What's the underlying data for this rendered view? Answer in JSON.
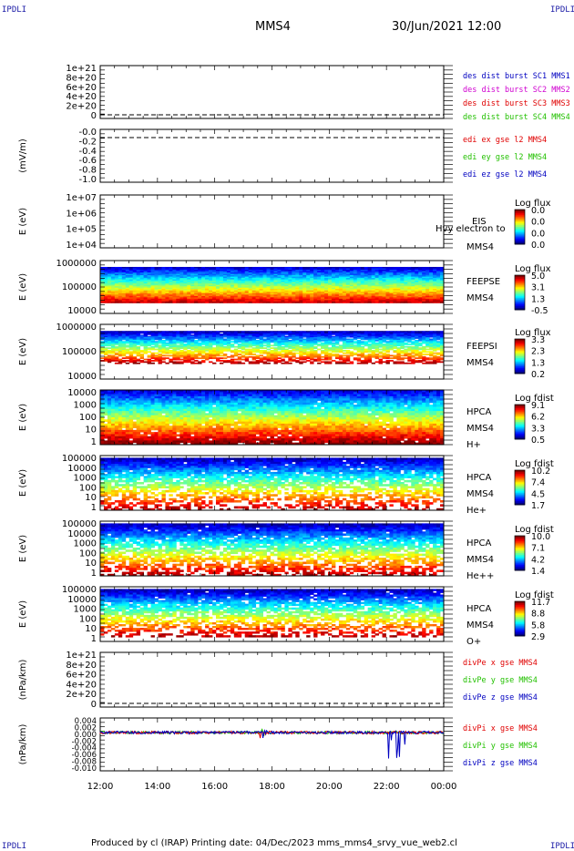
{
  "corner_tag": "IPDLI",
  "spacecraft_title": "MMS4",
  "date_title": "30/Jun/2021 12:00",
  "footer": "Produced by cl (IRAP)   Printing date: 04/Dec/2023   mms_mms4_srvy_vue_web2.cl",
  "colors": {
    "red": "#e00000",
    "magenta": "#d000d0",
    "green": "#22c000",
    "blue": "#0000c0"
  },
  "chart_data": {
    "type": "multi-panel time series / spectrogram",
    "x_ticks": [
      "12:00",
      "14:00",
      "16:00",
      "18:00",
      "20:00",
      "22:00",
      "00:00"
    ],
    "panels": [
      {
        "id": "p1",
        "kind": "line",
        "ylabel": "",
        "yticks": [
          "1e+21",
          "8e+20",
          "6e+20",
          "4e+20",
          "2e+20",
          "0"
        ],
        "legend": [
          {
            "text": "des dist burst SC1 MMS1",
            "color": "#0000c0"
          },
          {
            "text": "des dist burst SC2 MMS2",
            "color": "#d000d0"
          },
          {
            "text": "des dist burst SC3 MMS3",
            "color": "#e00000"
          },
          {
            "text": "des dist burst SC4 MMS4",
            "color": "#22c000"
          }
        ]
      },
      {
        "id": "p2",
        "kind": "line",
        "ylabel": "(mV/m)",
        "yticks": [
          "-0.0",
          "-0.2",
          "-0.4",
          "-0.6",
          "-0.8",
          "-1.0"
        ],
        "legend": [
          {
            "text": "edi ex gse l2 MMS4",
            "color": "#e00000"
          },
          {
            "text": "edi ey gse l2 MMS4",
            "color": "#22c000"
          },
          {
            "text": "edi ez gse l2 MMS4",
            "color": "#0000c0"
          }
        ]
      },
      {
        "id": "p3",
        "kind": "spectrogram",
        "ylabel": "E (eV)",
        "yticks": [
          "1e+07",
          "1e+06",
          "1e+05",
          "1e+04"
        ],
        "labels": [
          "EIS",
          "Hvy electron to",
          "MMS4"
        ],
        "cbar_title": "Log flux",
        "cbar_ticks": [
          "0.0",
          "0.0",
          "0.0",
          "0.0"
        ]
      },
      {
        "id": "p4",
        "kind": "spectrogram",
        "ylabel": "E (eV)",
        "yticks": [
          "1000000",
          "100000",
          "10000"
        ],
        "labels": [
          "FEEPSE",
          "MMS4"
        ],
        "cbar_title": "Log flux",
        "cbar_ticks": [
          "5.0",
          "3.1",
          "1.3",
          "-0.5"
        ]
      },
      {
        "id": "p5",
        "kind": "spectrogram",
        "ylabel": "E (eV)",
        "yticks": [
          "1000000",
          "100000",
          "10000"
        ],
        "labels": [
          "FEEPSI",
          "MMS4"
        ],
        "cbar_title": "Log flux",
        "cbar_ticks": [
          "3.3",
          "2.3",
          "1.3",
          "0.2"
        ]
      },
      {
        "id": "p6",
        "kind": "spectrogram",
        "ylabel": "E (eV)",
        "yticks": [
          "10000",
          "1000",
          "100",
          "10",
          "1"
        ],
        "labels": [
          "HPCA",
          "MMS4",
          "H+"
        ],
        "cbar_title": "Log fdist",
        "cbar_ticks": [
          "9.1",
          "6.2",
          "3.3",
          "0.5"
        ]
      },
      {
        "id": "p7",
        "kind": "spectrogram",
        "ylabel": "E (eV)",
        "yticks": [
          "100000",
          "10000",
          "1000",
          "100",
          "10",
          "1"
        ],
        "labels": [
          "HPCA",
          "MMS4",
          "He+"
        ],
        "cbar_title": "Log fdist",
        "cbar_ticks": [
          "10.2",
          "7.4",
          "4.5",
          "1.7"
        ]
      },
      {
        "id": "p8",
        "kind": "spectrogram",
        "ylabel": "E (eV)",
        "yticks": [
          "100000",
          "10000",
          "1000",
          "100",
          "10",
          "1"
        ],
        "labels": [
          "HPCA",
          "MMS4",
          "He++"
        ],
        "cbar_title": "Log fdist",
        "cbar_ticks": [
          "10.0",
          "7.1",
          "4.2",
          "1.4"
        ]
      },
      {
        "id": "p9",
        "kind": "spectrogram",
        "ylabel": "E (eV)",
        "yticks": [
          "100000",
          "10000",
          "1000",
          "100",
          "10",
          "1"
        ],
        "labels": [
          "HPCA",
          "MMS4",
          "O+"
        ],
        "cbar_title": "Log fdist",
        "cbar_ticks": [
          "11.7",
          "8.8",
          "5.8",
          "2.9"
        ]
      },
      {
        "id": "p10",
        "kind": "line",
        "ylabel": "(nPa/km)",
        "yticks": [
          "1e+21",
          "8e+20",
          "6e+20",
          "4e+20",
          "2e+20",
          "0"
        ],
        "legend": [
          {
            "text": "divPe x gse MMS4",
            "color": "#e00000"
          },
          {
            "text": "divPe y gse MMS4",
            "color": "#22c000"
          },
          {
            "text": "divPe z gse MMS4",
            "color": "#0000c0"
          }
        ]
      },
      {
        "id": "p11",
        "kind": "line",
        "ylabel": "(nPa/km)",
        "yticks": [
          "0.004",
          "0.002",
          "0.000",
          "-0.002",
          "-0.004",
          "-0.006",
          "-0.008",
          "-0.010"
        ],
        "legend": [
          {
            "text": "divPi x gse MMS4",
            "color": "#e00000"
          },
          {
            "text": "divPi y gse MMS4",
            "color": "#22c000"
          },
          {
            "text": "divPi z gse MMS4",
            "color": "#0000c0"
          }
        ]
      }
    ]
  }
}
